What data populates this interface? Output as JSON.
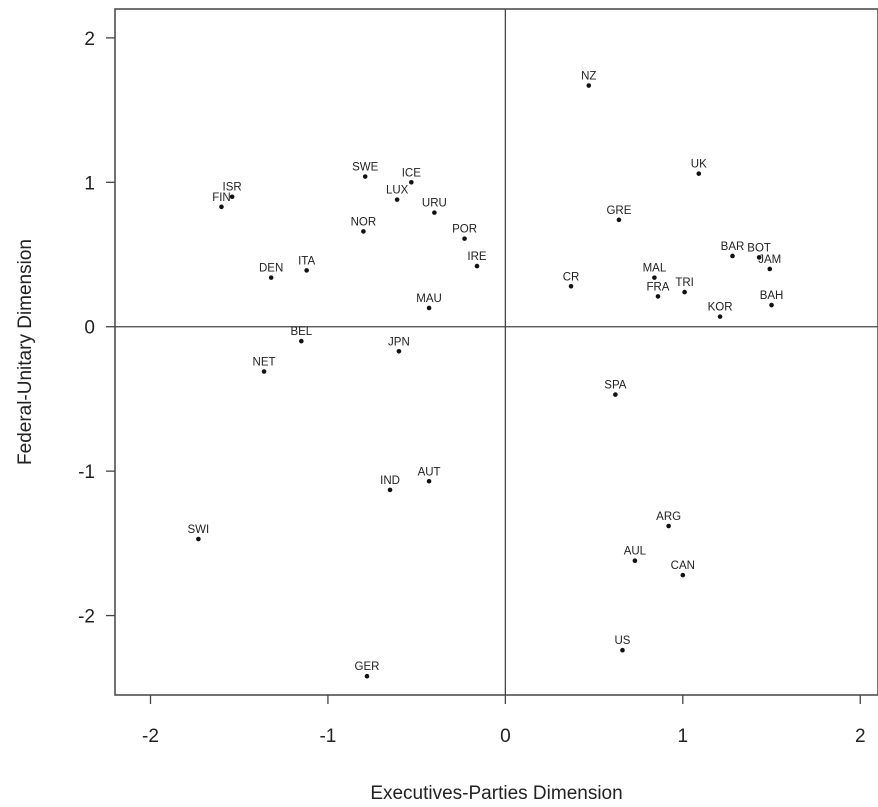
{
  "chart_data": {
    "type": "scatter",
    "title": "",
    "xlabel": "Executives-Parties Dimension",
    "ylabel": "Federal-Unitary Dimension",
    "xlim": [
      -2.2,
      2.1
    ],
    "ylim": [
      -2.55,
      2.2
    ],
    "xticks": [
      -2,
      -1,
      0,
      1,
      2
    ],
    "yticks": [
      -2,
      -1,
      0,
      1,
      2
    ],
    "xtick_labels": [
      "-2",
      "-1",
      "0",
      "1",
      "2"
    ],
    "ytick_labels": [
      "-2",
      "-1",
      "0",
      "1",
      "2"
    ],
    "grid": false,
    "reference_lines": {
      "x": 0,
      "y": 0
    },
    "points": [
      {
        "label": "NZ",
        "x": 0.47,
        "y": 1.67
      },
      {
        "label": "UK",
        "x": 1.09,
        "y": 1.06
      },
      {
        "label": "GRE",
        "x": 0.64,
        "y": 0.74
      },
      {
        "label": "BOT",
        "x": 1.43,
        "y": 0.48
      },
      {
        "label": "BAR",
        "x": 1.28,
        "y": 0.49
      },
      {
        "label": "JAM",
        "x": 1.49,
        "y": 0.4
      },
      {
        "label": "MAL",
        "x": 0.84,
        "y": 0.34
      },
      {
        "label": "TRI",
        "x": 1.01,
        "y": 0.24
      },
      {
        "label": "CR",
        "x": 0.37,
        "y": 0.28
      },
      {
        "label": "FRA",
        "x": 0.86,
        "y": 0.21
      },
      {
        "label": "KOR",
        "x": 1.21,
        "y": 0.07
      },
      {
        "label": "BAH",
        "x": 1.5,
        "y": 0.15
      },
      {
        "label": "SPA",
        "x": 0.62,
        "y": -0.47
      },
      {
        "label": "ARG",
        "x": 0.92,
        "y": -1.38
      },
      {
        "label": "AUL",
        "x": 0.73,
        "y": -1.62
      },
      {
        "label": "CAN",
        "x": 1.0,
        "y": -1.72
      },
      {
        "label": "US",
        "x": 0.66,
        "y": -2.24
      },
      {
        "label": "ISR",
        "x": -1.54,
        "y": 0.9
      },
      {
        "label": "FIN",
        "x": -1.6,
        "y": 0.83
      },
      {
        "label": "SWE",
        "x": -0.79,
        "y": 1.04
      },
      {
        "label": "ICE",
        "x": -0.53,
        "y": 1.0
      },
      {
        "label": "LUX",
        "x": -0.61,
        "y": 0.88
      },
      {
        "label": "URU",
        "x": -0.4,
        "y": 0.79
      },
      {
        "label": "NOR",
        "x": -0.8,
        "y": 0.66
      },
      {
        "label": "POR",
        "x": -0.23,
        "y": 0.61
      },
      {
        "label": "IRE",
        "x": -0.16,
        "y": 0.42
      },
      {
        "label": "DEN",
        "x": -1.32,
        "y": 0.34
      },
      {
        "label": "ITA",
        "x": -1.12,
        "y": 0.39
      },
      {
        "label": "MAU",
        "x": -0.43,
        "y": 0.13
      },
      {
        "label": "BEL",
        "x": -1.15,
        "y": -0.1
      },
      {
        "label": "JPN",
        "x": -0.6,
        "y": -0.17
      },
      {
        "label": "NET",
        "x": -1.36,
        "y": -0.31
      },
      {
        "label": "IND",
        "x": -0.65,
        "y": -1.13
      },
      {
        "label": "AUT",
        "x": -0.43,
        "y": -1.07
      },
      {
        "label": "SWI",
        "x": -1.73,
        "y": -1.47
      },
      {
        "label": "GER",
        "x": -0.78,
        "y": -2.42
      }
    ]
  }
}
